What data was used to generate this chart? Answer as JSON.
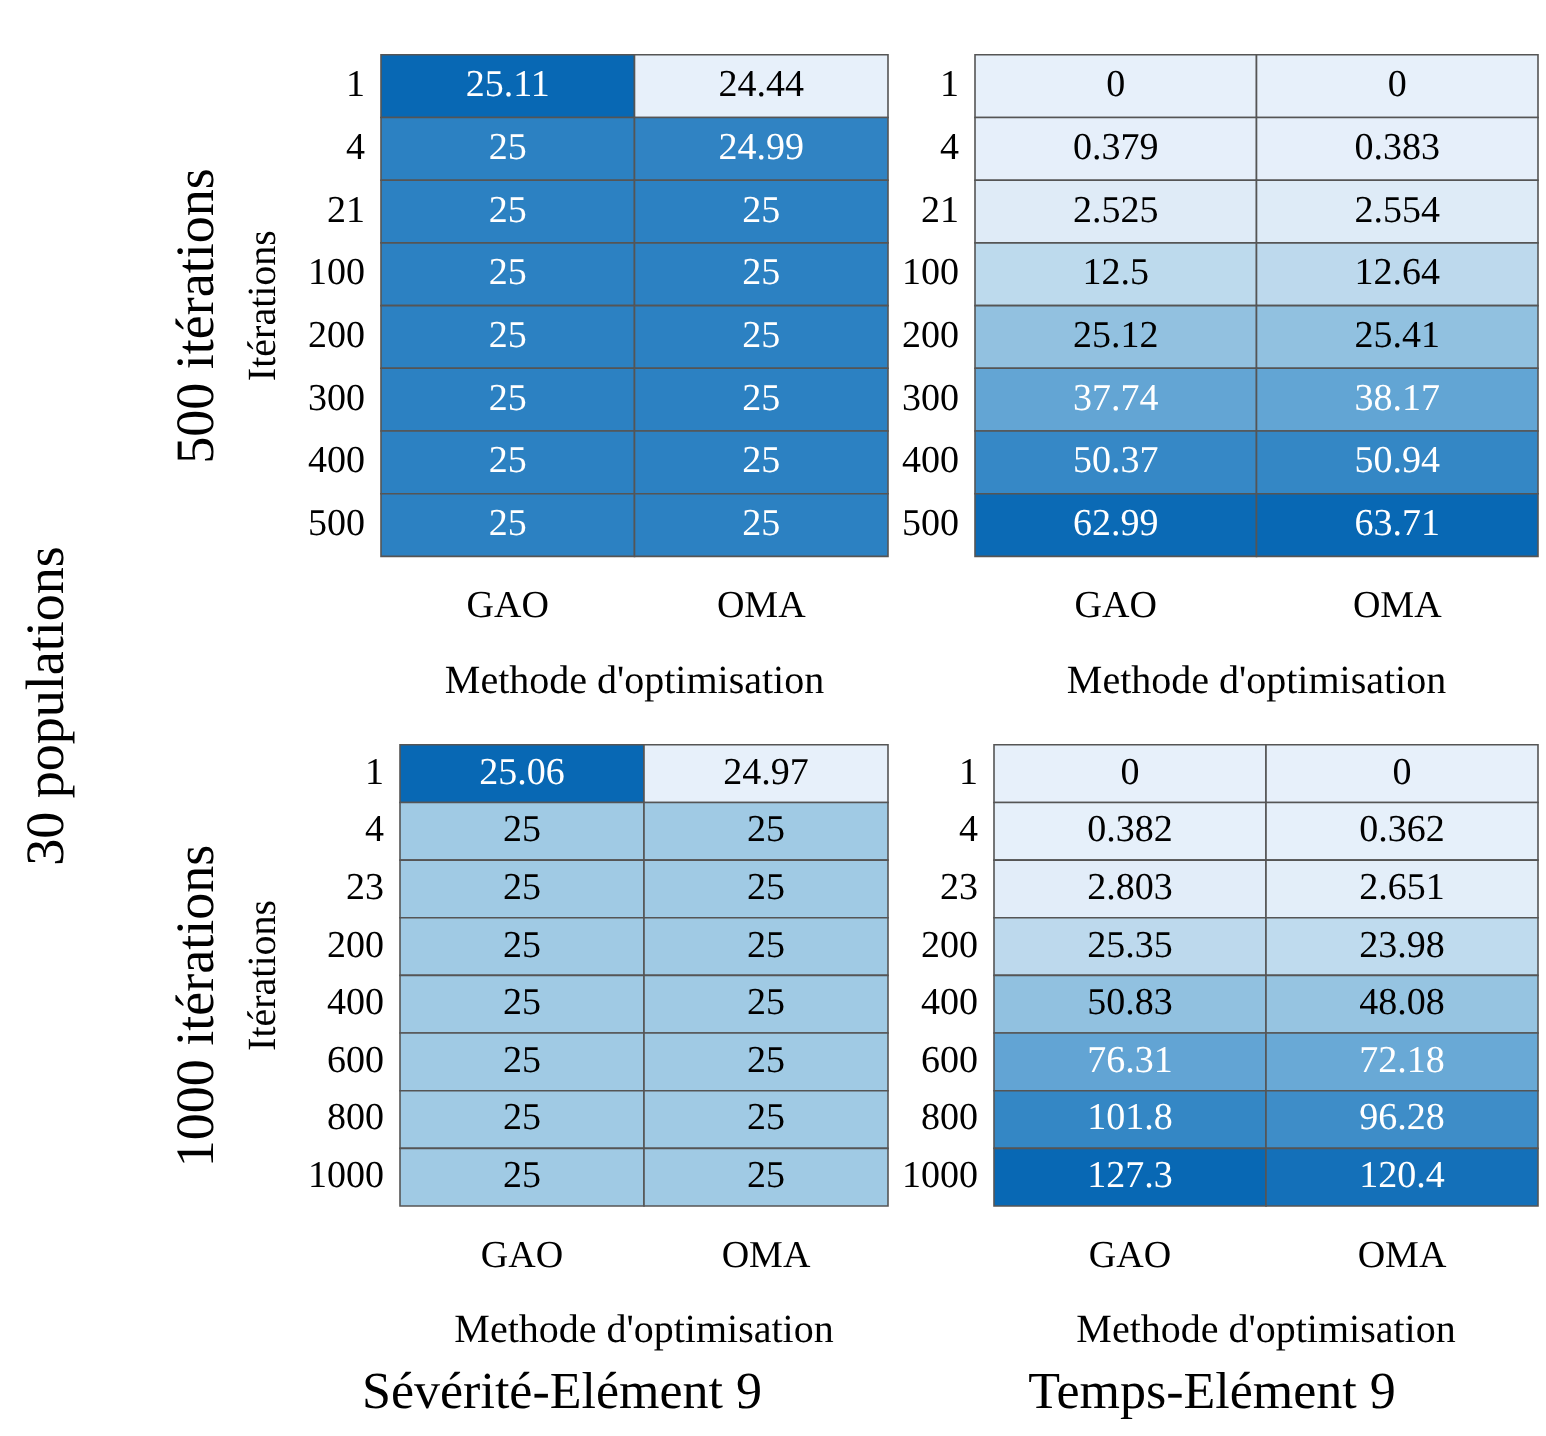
{
  "chart_data": [
    {
      "type": "heatmap",
      "categories": [
        "GAO",
        "OMA"
      ],
      "y_categories": [
        "1",
        "4",
        "21",
        "100",
        "200",
        "300",
        "400",
        "500"
      ],
      "xlabel": "Methode d'optimisation",
      "ylabel": "Itérations",
      "data_labels": true,
      "annotations": [
        "500 itérations"
      ],
      "cells": [
        [
          25.11,
          24.44
        ],
        [
          25,
          24.99
        ],
        [
          25,
          25
        ],
        [
          25,
          25
        ],
        [
          25,
          25
        ],
        [
          25,
          25
        ],
        [
          25,
          25
        ],
        [
          25,
          25
        ]
      ]
    },
    {
      "type": "heatmap",
      "categories": [
        "GAO",
        "OMA"
      ],
      "y_categories": [
        "1",
        "4",
        "21",
        "100",
        "200",
        "300",
        "400",
        "500"
      ],
      "xlabel": "Methode d'optimisation",
      "data_labels": true,
      "cells": [
        [
          0,
          0
        ],
        [
          0.379,
          0.383
        ],
        [
          2.525,
          2.554
        ],
        [
          12.5,
          12.64
        ],
        [
          25.12,
          25.41
        ],
        [
          37.74,
          38.17
        ],
        [
          50.37,
          50.94
        ],
        [
          62.99,
          63.71
        ]
      ]
    },
    {
      "type": "heatmap",
      "title": "Sévérité-Elément 9",
      "categories": [
        "GAO",
        "OMA"
      ],
      "y_categories": [
        "1",
        "4",
        "23",
        "200",
        "400",
        "600",
        "800",
        "1000"
      ],
      "xlabel": "Methode d'optimisation",
      "ylabel": "Itérations",
      "data_labels": true,
      "annotations": [
        "1000 itérations",
        "30 populations"
      ],
      "cells": [
        [
          25.06,
          24.97
        ],
        [
          25,
          25
        ],
        [
          25,
          25
        ],
        [
          25,
          25
        ],
        [
          25,
          25
        ],
        [
          25,
          25
        ],
        [
          25,
          25
        ],
        [
          25,
          25
        ]
      ]
    },
    {
      "type": "heatmap",
      "title": "Temps-Elément 9",
      "categories": [
        "GAO",
        "OMA"
      ],
      "y_categories": [
        "1",
        "4",
        "23",
        "200",
        "400",
        "600",
        "800",
        "1000"
      ],
      "xlabel": "Methode d'optimisation",
      "data_labels": true,
      "cells": [
        [
          0,
          0
        ],
        [
          0.382,
          0.362
        ],
        [
          2.803,
          2.651
        ],
        [
          25.35,
          23.98
        ],
        [
          50.83,
          48.08
        ],
        [
          76.31,
          72.18
        ],
        [
          101.8,
          96.28
        ],
        [
          127.3,
          120.4
        ]
      ]
    }
  ]
}
